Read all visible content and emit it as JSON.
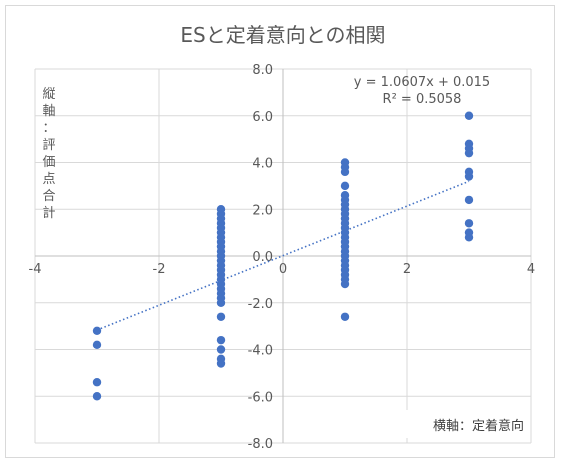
{
  "chart_data": {
    "type": "scatter",
    "title": "ESと定着意向との相関",
    "xlabel": "横軸：定着意向",
    "ylabel_chars": [
      "縦",
      "軸",
      "：",
      "評",
      "価",
      "点",
      "合",
      "計"
    ],
    "xlim": [
      -4,
      4
    ],
    "ylim": [
      -8,
      8
    ],
    "x_ticks": [
      "-4",
      "-2",
      "0",
      "2",
      "4"
    ],
    "y_ticks": [
      "8.0",
      "6.0",
      "4.0",
      "2.0",
      "0.0",
      "-2.0",
      "-4.0",
      "-6.0",
      "-8.0"
    ],
    "grid": true,
    "marker_color": "#4472c4",
    "trendline": {
      "slope": 1.0607,
      "intercept": 0.015,
      "equation": "y = 1.0607x + 0.015",
      "r_squared": "R² = 0.5058",
      "style": "dotted"
    },
    "points": [
      {
        "x": -3,
        "y": -3.2
      },
      {
        "x": -3,
        "y": -3.8
      },
      {
        "x": -3,
        "y": -5.4
      },
      {
        "x": -3,
        "y": -6.0
      },
      {
        "x": -1,
        "y": 2.0
      },
      {
        "x": -1,
        "y": 1.8
      },
      {
        "x": -1,
        "y": 1.6
      },
      {
        "x": -1,
        "y": 1.4
      },
      {
        "x": -1,
        "y": 1.2
      },
      {
        "x": -1,
        "y": 1.0
      },
      {
        "x": -1,
        "y": 0.8
      },
      {
        "x": -1,
        "y": 0.6
      },
      {
        "x": -1,
        "y": 0.4
      },
      {
        "x": -1,
        "y": 0.2
      },
      {
        "x": -1,
        "y": 0.0
      },
      {
        "x": -1,
        "y": -0.2
      },
      {
        "x": -1,
        "y": -0.4
      },
      {
        "x": -1,
        "y": -0.6
      },
      {
        "x": -1,
        "y": -0.8
      },
      {
        "x": -1,
        "y": -1.0
      },
      {
        "x": -1,
        "y": -1.2
      },
      {
        "x": -1,
        "y": -1.4
      },
      {
        "x": -1,
        "y": -1.6
      },
      {
        "x": -1,
        "y": -1.8
      },
      {
        "x": -1,
        "y": -2.0
      },
      {
        "x": -1,
        "y": -2.6
      },
      {
        "x": -1,
        "y": -3.6
      },
      {
        "x": -1,
        "y": -4.0
      },
      {
        "x": -1,
        "y": -4.4
      },
      {
        "x": -1,
        "y": -4.6
      },
      {
        "x": 1,
        "y": 4.0
      },
      {
        "x": 1,
        "y": 3.8
      },
      {
        "x": 1,
        "y": 3.6
      },
      {
        "x": 1,
        "y": 3.0
      },
      {
        "x": 1,
        "y": 2.6
      },
      {
        "x": 1,
        "y": 2.4
      },
      {
        "x": 1,
        "y": 2.2
      },
      {
        "x": 1,
        "y": 2.0
      },
      {
        "x": 1,
        "y": 1.8
      },
      {
        "x": 1,
        "y": 1.6
      },
      {
        "x": 1,
        "y": 1.4
      },
      {
        "x": 1,
        "y": 1.2
      },
      {
        "x": 1,
        "y": 1.0
      },
      {
        "x": 1,
        "y": 0.8
      },
      {
        "x": 1,
        "y": 0.6
      },
      {
        "x": 1,
        "y": 0.4
      },
      {
        "x": 1,
        "y": 0.2
      },
      {
        "x": 1,
        "y": 0.0
      },
      {
        "x": 1,
        "y": -0.2
      },
      {
        "x": 1,
        "y": -0.4
      },
      {
        "x": 1,
        "y": -0.6
      },
      {
        "x": 1,
        "y": -0.8
      },
      {
        "x": 1,
        "y": -1.0
      },
      {
        "x": 1,
        "y": -1.2
      },
      {
        "x": 1,
        "y": -2.6
      },
      {
        "x": 3,
        "y": 6.0
      },
      {
        "x": 3,
        "y": 4.8
      },
      {
        "x": 3,
        "y": 4.6
      },
      {
        "x": 3,
        "y": 4.4
      },
      {
        "x": 3,
        "y": 3.6
      },
      {
        "x": 3,
        "y": 3.4
      },
      {
        "x": 3,
        "y": 2.4
      },
      {
        "x": 3,
        "y": 1.4
      },
      {
        "x": 3,
        "y": 1.0
      },
      {
        "x": 3,
        "y": 0.8
      }
    ]
  }
}
